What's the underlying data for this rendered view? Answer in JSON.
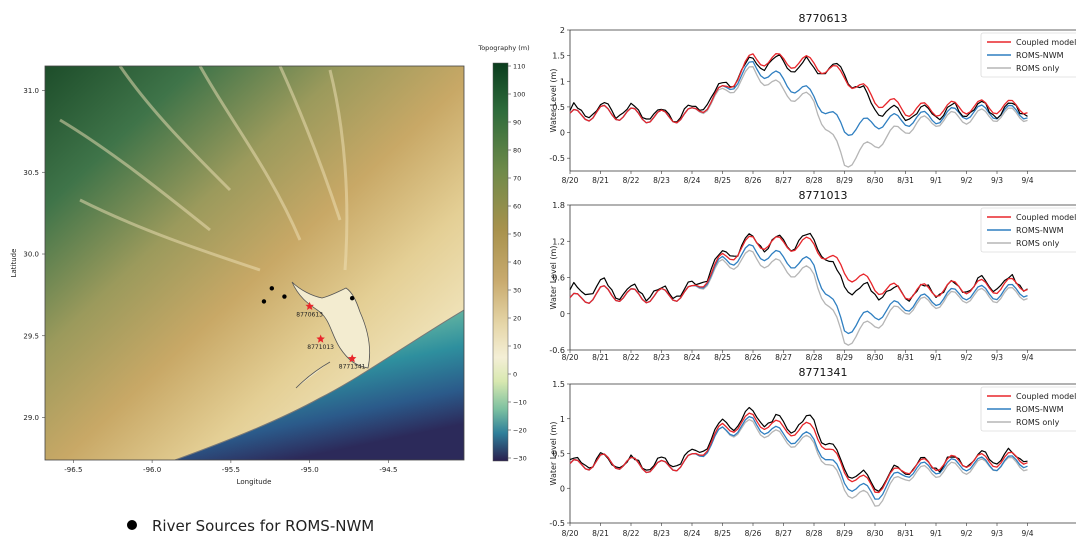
{
  "colors": {
    "observed": "#000000",
    "coupled": "#e8262b",
    "roms_nwm": "#2f7fc1",
    "roms_only": "#b5b5b5",
    "station_marker": "#e8262b",
    "river_source": "#000000"
  },
  "map": {
    "ylabel": "Latitude",
    "xlabel": "Longitude",
    "x_ticks": [
      "-96.5",
      "-96.0",
      "-95.5",
      "-95.0",
      "-94.5"
    ],
    "y_ticks": [
      "31.0",
      "30.5",
      "30.0",
      "29.5",
      "29.0"
    ],
    "colorbar": {
      "title": "Topography (m)",
      "ticks": [
        "110",
        "100",
        "90",
        "80",
        "70",
        "60",
        "50",
        "40",
        "30",
        "20",
        "10",
        "0",
        "−10",
        "−20",
        "−30"
      ]
    },
    "stations": [
      {
        "label": "8770613",
        "lon": -95.0,
        "lat": 29.68
      },
      {
        "label": "8771013",
        "lon": -94.93,
        "lat": 29.48
      },
      {
        "label": "8771341",
        "lon": -94.73,
        "lat": 29.36
      }
    ],
    "river_sources": [
      {
        "lon": -95.24,
        "lat": 29.79
      },
      {
        "lon": -95.16,
        "lat": 29.74
      },
      {
        "lon": -95.29,
        "lat": 29.71
      },
      {
        "lon": -94.73,
        "lat": 29.73
      }
    ]
  },
  "legend_bottom": {
    "label": "River Sources for ROMS-NWM"
  },
  "chart_data": [
    {
      "type": "line",
      "title": "8770613",
      "ylabel": "Water Level (m)",
      "ylim": [
        -0.75,
        2.0
      ],
      "yticks": [
        -0.5,
        0.0,
        0.5,
        1.0,
        1.5,
        2.0
      ],
      "x": [
        "8/20",
        "8/21",
        "8/22",
        "8/23",
        "8/24",
        "8/25",
        "8/26",
        "8/27",
        "8/28",
        "8/29",
        "8/30",
        "8/31",
        "9/1",
        "9/2",
        "9/3",
        "9/4"
      ],
      "legend": [
        "Coupled model",
        "ROMS-NWM",
        "ROMS only"
      ],
      "series": [
        {
          "name": "Coupled model",
          "values": [
            0.3,
            0.4,
            0.35,
            0.3,
            0.35,
            0.8,
            1.45,
            1.4,
            1.35,
            1.1,
            0.65,
            0.45,
            0.45,
            0.5,
            0.5,
            0.5
          ]
        },
        {
          "name": "ROMS-NWM",
          "values": [
            0.3,
            0.4,
            0.35,
            0.3,
            0.35,
            0.8,
            1.3,
            1.0,
            0.7,
            0.05,
            0.2,
            0.25,
            0.3,
            0.4,
            0.4,
            0.4
          ]
        },
        {
          "name": "ROMS only",
          "values": [
            0.3,
            0.4,
            0.35,
            0.3,
            0.35,
            0.75,
            1.2,
            0.8,
            0.6,
            -0.6,
            -0.2,
            0.1,
            0.25,
            0.3,
            0.35,
            0.35
          ]
        },
        {
          "name": "Observed",
          "values": [
            0.4,
            0.45,
            0.4,
            0.35,
            0.4,
            0.85,
            1.4,
            1.35,
            1.3,
            1.2,
            0.5,
            0.35,
            0.4,
            0.45,
            0.45,
            0.45
          ]
        }
      ]
    },
    {
      "type": "line",
      "title": "8771013",
      "ylabel": "Water Level (m)",
      "ylim": [
        -0.6,
        1.8
      ],
      "yticks": [
        -0.6,
        0.0,
        0.6,
        1.2,
        1.8
      ],
      "x": [
        "8/20",
        "8/21",
        "8/22",
        "8/23",
        "8/24",
        "8/25",
        "8/26",
        "8/27",
        "8/28",
        "8/29",
        "8/30",
        "8/31",
        "9/1",
        "9/2",
        "9/3",
        "9/4"
      ],
      "legend": [
        "Coupled model",
        "ROMS-NWM",
        "ROMS only"
      ],
      "series": [
        {
          "name": "Coupled model",
          "values": [
            0.2,
            0.35,
            0.3,
            0.3,
            0.35,
            0.9,
            1.2,
            1.15,
            1.15,
            0.7,
            0.45,
            0.35,
            0.4,
            0.45,
            0.45,
            0.5
          ]
        },
        {
          "name": "ROMS-NWM",
          "values": [
            0.2,
            0.35,
            0.3,
            0.3,
            0.35,
            0.85,
            1.05,
            0.9,
            0.8,
            -0.25,
            0.0,
            0.15,
            0.25,
            0.35,
            0.35,
            0.4
          ]
        },
        {
          "name": "ROMS only",
          "values": [
            0.2,
            0.35,
            0.3,
            0.3,
            0.35,
            0.8,
            0.95,
            0.75,
            0.65,
            -0.45,
            -0.15,
            0.1,
            0.2,
            0.3,
            0.3,
            0.35
          ]
        },
        {
          "name": "Observed",
          "values": [
            0.35,
            0.45,
            0.35,
            0.35,
            0.4,
            0.95,
            1.2,
            1.15,
            1.25,
            0.45,
            0.35,
            0.35,
            0.4,
            0.45,
            0.5,
            0.5
          ]
        }
      ]
    },
    {
      "type": "line",
      "title": "8771341",
      "ylabel": "Water Level (m)",
      "ylim": [
        -0.5,
        1.5
      ],
      "yticks": [
        -0.5,
        0.0,
        0.5,
        1.0,
        1.5
      ],
      "x": [
        "8/20",
        "8/21",
        "8/22",
        "8/23",
        "8/24",
        "8/25",
        "8/26",
        "8/27",
        "8/28",
        "8/29",
        "8/30",
        "8/31",
        "9/1",
        "9/2",
        "9/3",
        "9/4"
      ],
      "legend": [
        "Coupled model",
        "ROMS-NWM",
        "ROMS only"
      ],
      "series": [
        {
          "name": "Coupled model",
          "values": [
            0.3,
            0.4,
            0.35,
            0.3,
            0.4,
            0.85,
            1.0,
            0.85,
            0.85,
            0.25,
            0.0,
            0.3,
            0.35,
            0.4,
            0.4,
            0.45
          ]
        },
        {
          "name": "ROMS-NWM",
          "values": [
            0.3,
            0.4,
            0.35,
            0.3,
            0.4,
            0.8,
            0.95,
            0.75,
            0.7,
            0.1,
            -0.1,
            0.25,
            0.3,
            0.35,
            0.35,
            0.4
          ]
        },
        {
          "name": "ROMS only",
          "values": [
            0.3,
            0.4,
            0.35,
            0.3,
            0.4,
            0.8,
            0.9,
            0.7,
            0.65,
            0.0,
            -0.2,
            0.2,
            0.25,
            0.3,
            0.35,
            0.35
          ]
        },
        {
          "name": "Observed",
          "values": [
            0.35,
            0.4,
            0.35,
            0.35,
            0.45,
            0.9,
            1.05,
            0.9,
            0.95,
            0.3,
            0.05,
            0.3,
            0.35,
            0.4,
            0.45,
            0.45
          ]
        }
      ]
    }
  ]
}
